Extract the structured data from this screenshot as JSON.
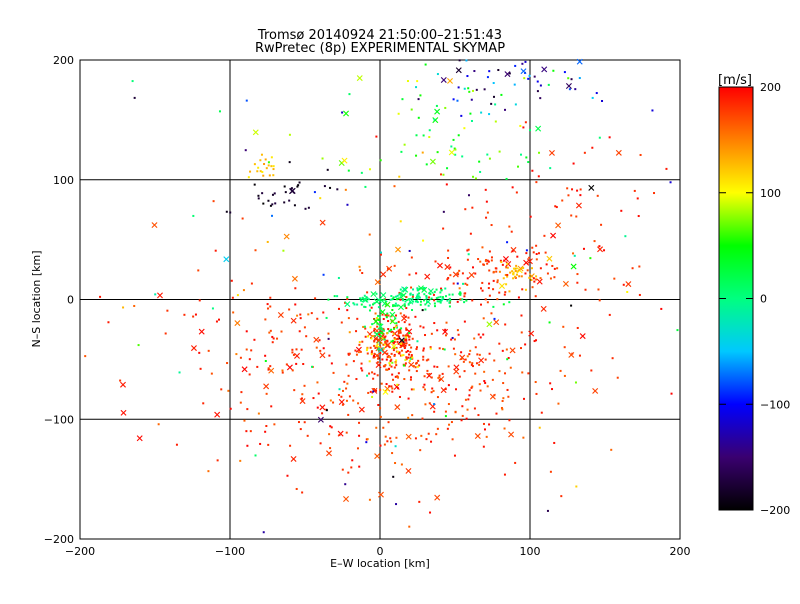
{
  "chart_data": {
    "type": "scatter",
    "title": "Tromsø 20140924 21:50:00–21:51:43",
    "subtitle": "RwPretec (8p) EXPERIMENTAL SKYMAP",
    "xlabel": "E–W location [km]",
    "ylabel": "N–S location [km]",
    "xlim": [
      -200,
      200
    ],
    "ylim": [
      -200,
      200
    ],
    "xticks": [
      -200,
      -100,
      0,
      100,
      200
    ],
    "yticks": [
      -200,
      -100,
      0,
      100,
      200
    ],
    "grid": true,
    "markers": {
      "small": "dot",
      "large": "x"
    },
    "colorbar": {
      "label": "[m/s]",
      "range": [
        -200,
        200
      ],
      "ticks": [
        200,
        100,
        0,
        -100,
        -200
      ],
      "colors": [
        "#000000",
        "#3a0070",
        "#0000ff",
        "#00c8ff",
        "#00ff80",
        "#00ff00",
        "#ffff00",
        "#ff8000",
        "#ff0000"
      ]
    },
    "clusters": [
      {
        "x": 8,
        "y": -35,
        "sx": 10,
        "sy": 14,
        "n": 170,
        "v": [
          170,
          200
        ]
      },
      {
        "x": 40,
        "y": -70,
        "sx": 45,
        "sy": 40,
        "n": 260,
        "v": [
          160,
          200
        ]
      },
      {
        "x": -20,
        "y": -60,
        "sx": 55,
        "sy": 45,
        "n": 150,
        "v": [
          150,
          200
        ]
      },
      {
        "x": 15,
        "y": 0,
        "sx": 22,
        "sy": 4,
        "n": 110,
        "v": [
          -10,
          25
        ]
      },
      {
        "x": 35,
        "y": 5,
        "sx": 15,
        "sy": 4,
        "n": 40,
        "v": [
          -10,
          30
        ]
      },
      {
        "x": 5,
        "y": -20,
        "sx": 8,
        "sy": 12,
        "n": 50,
        "v": [
          0,
          60
        ]
      },
      {
        "x": 5,
        "y": -45,
        "sx": 10,
        "sy": 15,
        "n": 40,
        "v": [
          90,
          140
        ]
      },
      {
        "x": 75,
        "y": 20,
        "sx": 30,
        "sy": 15,
        "n": 90,
        "v": [
          160,
          200
        ]
      },
      {
        "x": 90,
        "y": 20,
        "sx": 6,
        "sy": 5,
        "n": 35,
        "v": [
          110,
          150
        ]
      },
      {
        "x": 120,
        "y": 50,
        "sx": 45,
        "sy": 50,
        "n": 100,
        "v": [
          170,
          200
        ]
      },
      {
        "x": -80,
        "y": -40,
        "sx": 40,
        "sy": 35,
        "n": 80,
        "v": [
          170,
          200
        ]
      },
      {
        "x": -65,
        "y": 85,
        "sx": 15,
        "sy": 10,
        "n": 30,
        "v": [
          -200,
          -170
        ]
      },
      {
        "x": -75,
        "y": 110,
        "sx": 5,
        "sy": 6,
        "n": 20,
        "v": [
          100,
          140
        ]
      },
      {
        "x": 85,
        "y": 180,
        "sx": 30,
        "sy": 12,
        "n": 55,
        "v": [
          -200,
          -30
        ]
      },
      {
        "x": 50,
        "y": 140,
        "sx": 40,
        "sy": 25,
        "n": 70,
        "v": [
          -10,
          100
        ]
      },
      {
        "x": 0,
        "y": 0,
        "sx": 110,
        "sy": 110,
        "n": 140,
        "v": [
          -200,
          200
        ]
      }
    ]
  }
}
